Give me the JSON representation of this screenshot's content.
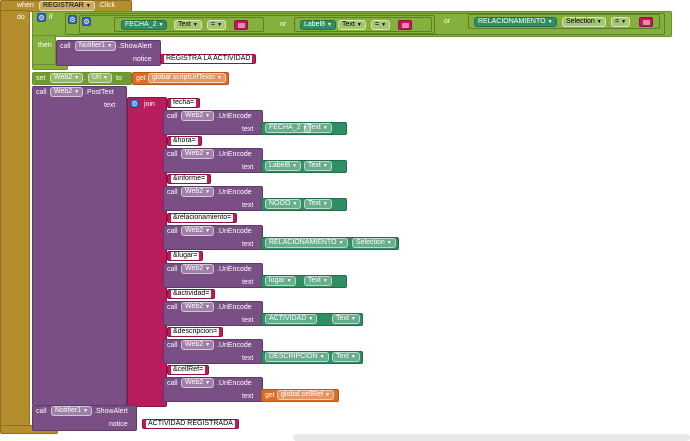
{
  "event": {
    "when": "when",
    "component": "REGISTRAR",
    "event_name": ".Click",
    "do": "do"
  },
  "if_block": {
    "if_label": "if",
    "then_label": "then",
    "cond1": {
      "component": "FECHA_2",
      "property": "Text",
      "op": "="
    },
    "or1": "or",
    "cond2": {
      "component": "Label8",
      "property": "Text",
      "op": "="
    },
    "or2": "or",
    "cond3": {
      "component": "RELACIONAMIENTO",
      "property": "Selection",
      "op": "="
    },
    "notify": {
      "call": "call",
      "component": "Notifier1",
      "method": ".ShowAlert",
      "param": "notice",
      "text": "REGISTRA LA ACTIVIDAD"
    }
  },
  "set_block": {
    "set": "set",
    "component": "Web2",
    "property": "Url",
    "to": "to",
    "get": "get",
    "var": "global scriptUrlTexto"
  },
  "post_block": {
    "call": "call",
    "component": "Web2",
    "method": ".PostText",
    "param": "text",
    "join": "join"
  },
  "join_items": [
    {
      "key": "fecha=",
      "call": "call",
      "component": "Web2",
      "method": ".UriEncode",
      "param": "text",
      "value_component": "FECHA_2",
      "value_property": "Text"
    },
    {
      "key": "&hora=",
      "call": "call",
      "component": "Web2",
      "method": ".UriEncode",
      "param": "text",
      "value_component": "Label8",
      "value_property": "Text"
    },
    {
      "key": "&informe=",
      "call": "call",
      "component": "Web2",
      "method": ".UriEncode",
      "param": "text",
      "value_component": "NOOO",
      "value_property": "Text"
    },
    {
      "key": "&relacionamiento=",
      "call": "call",
      "component": "Web2",
      "method": ".UriEncode",
      "param": "text",
      "value_component": "RELACIONAMIENTO",
      "value_property": "Selection"
    },
    {
      "key": "&lugar=",
      "call": "call",
      "component": "Web2",
      "method": ".UriEncode",
      "param": "text",
      "value_component": "lugar",
      "value_property": "Text"
    },
    {
      "key": "&actividad=",
      "call": "call",
      "component": "Web2",
      "method": ".UriEncode",
      "param": "text",
      "value_component": "ACTIVIDAD",
      "value_property": "Text"
    },
    {
      "key": "&descripcion=",
      "call": "call",
      "component": "Web2",
      "method": ".UriEncode",
      "param": "text",
      "value_component": "DESCRIPCION",
      "value_property": "Text"
    },
    {
      "key": "&cellRef=",
      "call": "call",
      "component": "Web2",
      "method": ".UriEncode",
      "param": "text",
      "get": "get",
      "var": "global cellRef"
    }
  ],
  "final_notify": {
    "call": "call",
    "component": "Notifier1",
    "method": ".ShowAlert",
    "param": "notice",
    "text": "ACTIVIDAD REGISTRADA"
  },
  "colors": {
    "event": "#b48e2d",
    "logic": "#86b03e",
    "procedure": "#7a4f86",
    "text": "#b81c5c",
    "component": "#2f8e63",
    "variable": "#dd6c25"
  }
}
